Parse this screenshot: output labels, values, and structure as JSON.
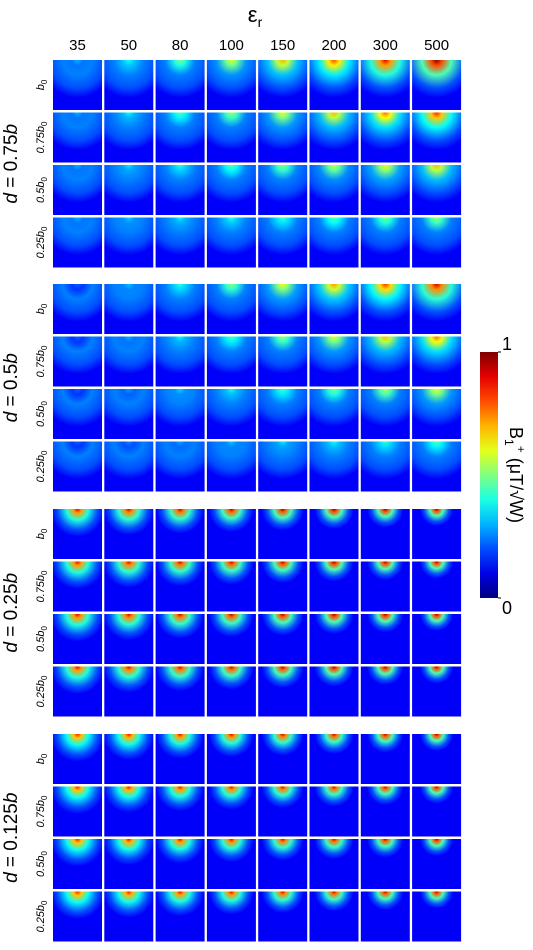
{
  "title": {
    "main": "ε",
    "sub": "r"
  },
  "columns": [
    "35",
    "50",
    "80",
    "100",
    "150",
    "200",
    "300",
    "500"
  ],
  "row_subscript": "0",
  "groups": [
    {
      "label_var": "d",
      "label_mid": " = 0.75",
      "label_end": "b",
      "rows": [
        "b",
        "0.75b",
        "0.5b",
        "0.25b"
      ]
    },
    {
      "label_var": "d",
      "label_mid": " = 0.5",
      "label_end": "b",
      "rows": [
        "b",
        "0.75b",
        "0.5b",
        "0.25b"
      ]
    },
    {
      "label_var": "d",
      "label_mid": " = 0.25",
      "label_end": "b",
      "rows": [
        "b",
        "0.75b",
        "0.5b",
        "0.25b"
      ]
    },
    {
      "label_var": "d",
      "label_mid": " = 0.125",
      "label_end": "b",
      "rows": [
        "b",
        "0.75b",
        "0.5b",
        "0.25b"
      ]
    }
  ],
  "colorbar": {
    "label_main": "B",
    "label_sub": "1",
    "label_sup": "+",
    "label_unit": " (μT/√W)",
    "ticks": [
      0,
      1
    ]
  }
}
